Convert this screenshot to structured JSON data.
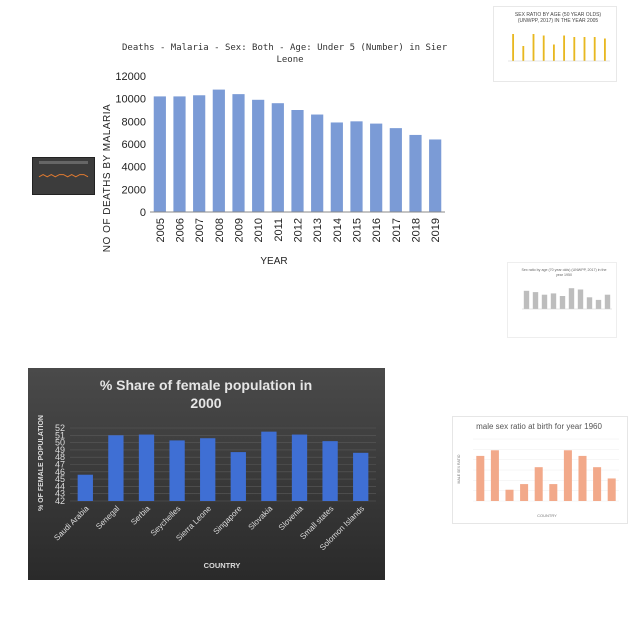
{
  "main_chart": {
    "title_line1": "Deaths - Malaria - Sex: Both - Age: Under 5 (Number) in Sierra",
    "title_line2": "Leone",
    "xlabel": "YEAR",
    "ylabel": "NO OF DEATHS BY MALARIA",
    "bar_color": "#7b9bd6",
    "yticks": [
      "0",
      "2000",
      "4000",
      "6000",
      "8000",
      "10000",
      "12000"
    ],
    "chart_data": {
      "type": "bar",
      "categories": [
        "2005",
        "2006",
        "2007",
        "2008",
        "2009",
        "2010",
        "2011",
        "2012",
        "2013",
        "2014",
        "2015",
        "2016",
        "2017",
        "2018",
        "2019"
      ],
      "values": [
        10200,
        10200,
        10300,
        10800,
        10400,
        9900,
        9600,
        9000,
        8600,
        7900,
        8000,
        7800,
        7400,
        6800,
        6400
      ],
      "ylim": [
        0,
        12000
      ],
      "grid": false
    }
  },
  "female_chart": {
    "title_line1": "% Share of female population in",
    "title_line2": "2000",
    "xlabel": "COUNTRY",
    "ylabel": "% OF FEMALE POPULATION",
    "bar_color": "#3f6fd4",
    "background": "#3a3a3a",
    "yticks": [
      "42",
      "43",
      "44",
      "45",
      "46",
      "47",
      "48",
      "49",
      "50",
      "51",
      "52"
    ],
    "chart_data": {
      "type": "bar",
      "categories": [
        "Saudi Arabia",
        "Senegal",
        "Serbia",
        "Seychelles",
        "Sierra Leone",
        "Singapore",
        "Slovakia",
        "Slovenia",
        "Small states",
        "Solomon Islands"
      ],
      "values": [
        45.6,
        51.0,
        51.1,
        50.3,
        50.6,
        48.7,
        51.5,
        51.1,
        50.2,
        48.6
      ],
      "ylim": [
        42,
        52
      ],
      "grid": true
    }
  },
  "birth_ratio_chart": {
    "title": "male sex ratio at birth for year 1960",
    "xlabel": "COUNTRY",
    "ylabel": "MALE SEX RATIO",
    "bar_color": "#f2a98a",
    "chart_data": {
      "type": "bar",
      "values": [
        108,
        109,
        102,
        103,
        106,
        103,
        109,
        108,
        106,
        104
      ],
      "ylim": [
        100,
        111
      ]
    }
  },
  "sex_ratio_50_chart": {
    "title_line1": "SEX RATIO BY AGE (50 YEAR OLDS)",
    "title_line2": "(UNWPP, 2017) IN THE YEAR 2005",
    "bar_color": "#e8b820",
    "chart_data": {
      "type": "bar",
      "values": [
        0.98,
        0.9,
        0.98,
        0.97,
        0.91,
        0.97,
        0.96,
        0.96,
        0.96,
        0.95
      ],
      "ylim": [
        0.8,
        1.0
      ]
    }
  },
  "sex_ratio_gray_chart": {
    "title_line1": "Sex ratio by age (70 year olds) (UNWPP, 2017) in the",
    "title_line2": "year 1950",
    "bar_color": "#bdbdbd",
    "chart_data": {
      "type": "bar",
      "values": [
        0.88,
        0.86,
        0.82,
        0.84,
        0.8,
        0.92,
        0.9,
        0.78,
        0.74,
        0.82
      ],
      "ylim": [
        0.6,
        1.0
      ]
    }
  },
  "dark_thumb_chart": {
    "line_color": "#e07a30",
    "chart_data": {
      "type": "line",
      "values": [
        6,
        7,
        6,
        7,
        6,
        7,
        7,
        6,
        7,
        6,
        7,
        7,
        6
      ],
      "ylim": [
        0,
        10
      ]
    }
  }
}
